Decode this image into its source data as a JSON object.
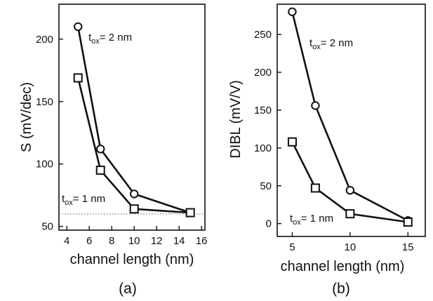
{
  "chart_data": [
    {
      "type": "line",
      "panel_label": "(a)",
      "xlabel": "channel length (nm)",
      "ylabel": "S (mV/dec)",
      "xlim": [
        3.3,
        16.3
      ],
      "ylim": [
        47,
        228
      ],
      "xticks": [
        4,
        6,
        8,
        10,
        12,
        14,
        16
      ],
      "yticks": [
        50,
        100,
        150,
        200
      ],
      "reference_line": {
        "y": 60,
        "style": "dotted"
      },
      "series": [
        {
          "marker": "circle",
          "label_main": "t",
          "label_sub": "ox",
          "label_rest": "= 2 nm",
          "x": [
            5,
            7,
            10,
            15
          ],
          "y": [
            210,
            112,
            76,
            61
          ]
        },
        {
          "marker": "square",
          "label_main": "t",
          "label_sub": "ox",
          "label_rest": "= 1 nm",
          "x": [
            5,
            7,
            10,
            15
          ],
          "y": [
            169,
            95,
            64,
            61
          ]
        }
      ]
    },
    {
      "type": "line",
      "panel_label": "(b)",
      "xlabel": "channel length (nm)",
      "ylabel": "DIBL (mV/V)",
      "xlim": [
        3.7,
        16.5
      ],
      "ylim": [
        -17,
        290
      ],
      "xticks": [
        5,
        10,
        15
      ],
      "yticks": [
        0,
        50,
        100,
        150,
        200,
        250
      ],
      "series": [
        {
          "marker": "circle",
          "label_main": "t",
          "label_sub": "ox",
          "label_rest": "= 2 nm",
          "x": [
            5,
            7,
            10,
            15
          ],
          "y": [
            280,
            156,
            44,
            4
          ]
        },
        {
          "marker": "square",
          "label_main": "t",
          "label_sub": "ox",
          "label_rest": "= 1 nm",
          "x": [
            5,
            7,
            10,
            15
          ],
          "y": [
            108,
            47,
            13,
            2
          ]
        }
      ]
    }
  ]
}
